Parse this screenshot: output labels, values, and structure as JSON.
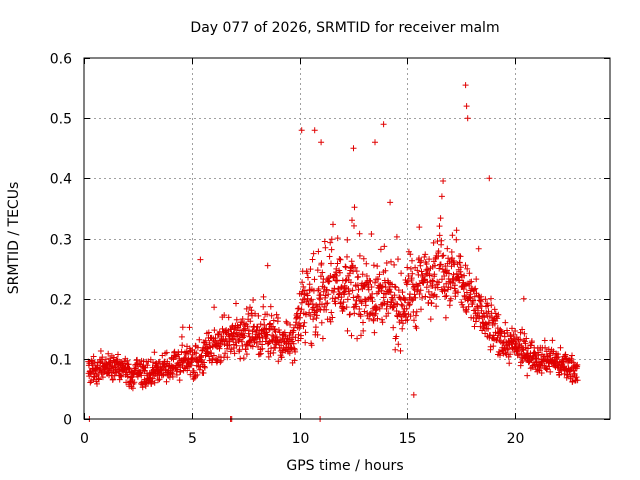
{
  "chart_data": {
    "type": "scatter",
    "title": "Day 077 of 2026, SRMTID for receiver malm",
    "xlabel": "GPS time / hours",
    "ylabel": "SRMTID / TECUs",
    "xlim": [
      0,
      24.4
    ],
    "ylim": [
      0,
      0.6
    ],
    "xticks": [
      0,
      5,
      10,
      15,
      20
    ],
    "xtick_labels": [
      "0",
      "5",
      "10",
      "15",
      "20"
    ],
    "yticks": [
      0,
      0.1,
      0.2,
      0.3,
      0.4,
      0.5,
      0.6
    ],
    "ytick_labels": [
      "0",
      "0.1",
      "0.2",
      "0.3",
      "0.4",
      "0.5",
      "0.6"
    ],
    "grid": true,
    "marker": "+",
    "marker_color": "#e00000",
    "series": [
      {
        "name": "SRMTID",
        "x_range": [
          0.2,
          22.9
        ],
        "x_step": 0.013,
        "seed": 77,
        "baseline_profile": [
          [
            0.2,
            0.08
          ],
          [
            1.5,
            0.09
          ],
          [
            2.5,
            0.07
          ],
          [
            4.0,
            0.09
          ],
          [
            5.5,
            0.1
          ],
          [
            6.5,
            0.13
          ],
          [
            7.5,
            0.15
          ],
          [
            9.0,
            0.14
          ],
          [
            9.8,
            0.12
          ],
          [
            10.2,
            0.18
          ],
          [
            11.5,
            0.22
          ],
          [
            13.0,
            0.21
          ],
          [
            14.5,
            0.19
          ],
          [
            15.5,
            0.22
          ],
          [
            16.5,
            0.26
          ],
          [
            17.5,
            0.23
          ],
          [
            18.5,
            0.16
          ],
          [
            19.5,
            0.13
          ],
          [
            20.5,
            0.11
          ],
          [
            21.5,
            0.1
          ],
          [
            22.9,
            0.08
          ]
        ],
        "spread_profile": [
          [
            0.2,
            0.025
          ],
          [
            5.0,
            0.03
          ],
          [
            6.5,
            0.04
          ],
          [
            9.5,
            0.05
          ],
          [
            10.5,
            0.08
          ],
          [
            13.5,
            0.07
          ],
          [
            15.5,
            0.075
          ],
          [
            18.5,
            0.06
          ],
          [
            19.5,
            0.035
          ],
          [
            22.9,
            0.025
          ]
        ],
        "outliers": [
          [
            10.1,
            0.48
          ],
          [
            10.7,
            0.48
          ],
          [
            11.0,
            0.46
          ],
          [
            12.5,
            0.45
          ],
          [
            13.5,
            0.46
          ],
          [
            13.9,
            0.49
          ],
          [
            17.7,
            0.555
          ],
          [
            17.75,
            0.52
          ],
          [
            17.8,
            0.5
          ],
          [
            5.4,
            0.265
          ],
          [
            14.2,
            0.36
          ],
          [
            16.6,
            0.37
          ],
          [
            18.8,
            0.4
          ],
          [
            20.4,
            0.2
          ],
          [
            15.3,
            0.04
          ]
        ],
        "zero_points": [
          0.25,
          6.8,
          6.85,
          10.95
        ]
      }
    ]
  }
}
